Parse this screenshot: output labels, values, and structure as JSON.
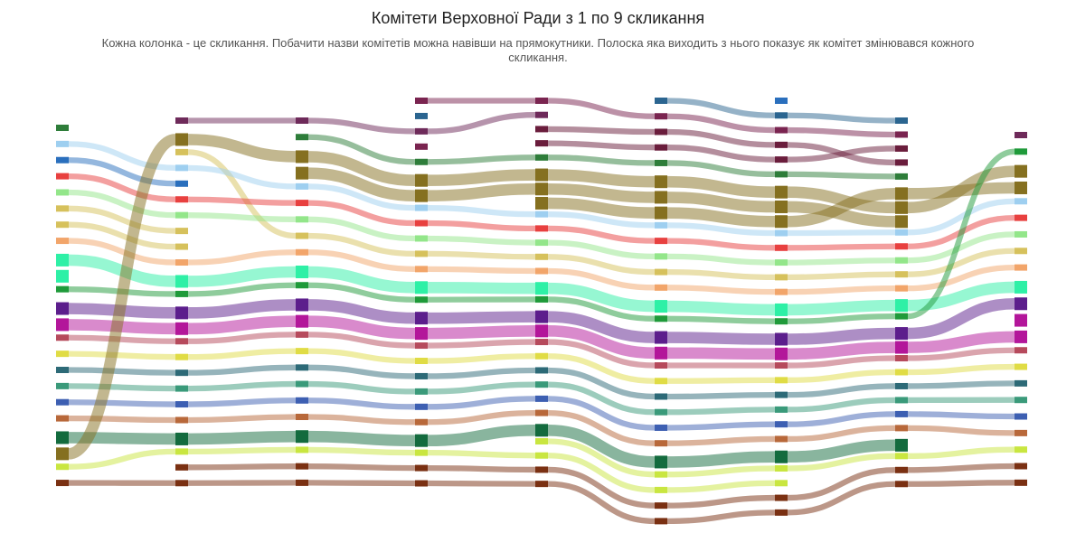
{
  "title": "Комітети Верховної Ради з 1 по 9 скликання",
  "subtitle": "Кожна колонка - це скликання. Побачити назви комітетів можна навівши на прямокутники. Полоска яка виходить з нього показує як комітет змінювався кожного скликання.",
  "chart_data": {
    "type": "sankey",
    "columns": 9,
    "palette": {
      "c_green_dark": "#2e7d3a",
      "c_lightblue": "#9ecff0",
      "c_blue": "#2a6fbd",
      "c_red": "#e8403f",
      "c_lightgreen": "#93e68a",
      "c_khaki": "#d6c15c",
      "c_peach": "#f2a56a",
      "c_mint": "#2ef0a6",
      "c_green": "#1f9a3a",
      "c_purple": "#5c1e8c",
      "c_magenta": "#b3169a",
      "c_rose": "#b64a5c",
      "c_yellow": "#e0dc45",
      "c_slate": "#2d6a77",
      "c_teal": "#3a9a7a",
      "c_navy": "#3d5fb2",
      "c_brown": "#b8683a",
      "c_forest": "#136b3e",
      "c_olive": "#857020",
      "c_lime": "#c9e640",
      "c_rust": "#7a3012",
      "c_plum": "#6e2a5a",
      "c_steel": "#2b6590",
      "c_maroon": "#6a1d3c",
      "c_wine": "#7a2450"
    },
    "nodes": [
      [
        "c_green_dark",
        "c_lightblue",
        "c_blue",
        "c_red",
        "c_lightgreen",
        "c_khaki",
        "c_khaki",
        "c_peach",
        "c_mint",
        "c_mint",
        "c_green",
        "c_purple",
        "c_magenta",
        "c_rose",
        "c_yellow",
        "c_slate",
        "c_teal",
        "c_navy",
        "c_brown",
        "c_forest",
        "c_olive",
        "c_lime",
        "c_rust"
      ],
      [
        "c_plum",
        "c_olive",
        "c_khaki",
        "c_lightblue",
        "c_blue",
        "c_red",
        "c_lightgreen",
        "c_khaki",
        "c_khaki",
        "c_peach",
        "c_mint",
        "c_green",
        "c_purple",
        "c_magenta",
        "c_rose",
        "c_yellow",
        "c_slate",
        "c_teal",
        "c_navy",
        "c_brown",
        "c_forest",
        "c_lime",
        "c_rust",
        "c_rust"
      ],
      [
        "c_plum",
        "c_green_dark",
        "c_olive",
        "c_olive",
        "c_lightblue",
        "c_red",
        "c_lightgreen",
        "c_khaki",
        "c_peach",
        "c_mint",
        "c_green",
        "c_purple",
        "c_magenta",
        "c_rose",
        "c_yellow",
        "c_slate",
        "c_teal",
        "c_navy",
        "c_brown",
        "c_forest",
        "c_lime",
        "c_rust",
        "c_rust"
      ],
      [
        "c_wine",
        "c_steel",
        "c_plum",
        "c_wine",
        "c_green_dark",
        "c_olive",
        "c_olive",
        "c_lightblue",
        "c_red",
        "c_lightgreen",
        "c_khaki",
        "c_peach",
        "c_mint",
        "c_green",
        "c_purple",
        "c_magenta",
        "c_rose",
        "c_yellow",
        "c_slate",
        "c_teal",
        "c_navy",
        "c_brown",
        "c_forest",
        "c_lime",
        "c_rust",
        "c_rust"
      ],
      [
        "c_wine",
        "c_plum",
        "c_maroon",
        "c_maroon",
        "c_green_dark",
        "c_olive",
        "c_olive",
        "c_olive",
        "c_lightblue",
        "c_red",
        "c_lightgreen",
        "c_khaki",
        "c_peach",
        "c_mint",
        "c_green",
        "c_purple",
        "c_magenta",
        "c_rose",
        "c_yellow",
        "c_slate",
        "c_teal",
        "c_navy",
        "c_brown",
        "c_forest",
        "c_lime",
        "c_lime",
        "c_rust",
        "c_rust"
      ],
      [
        "c_steel",
        "c_wine",
        "c_maroon",
        "c_maroon",
        "c_green_dark",
        "c_olive",
        "c_olive",
        "c_olive",
        "c_lightblue",
        "c_red",
        "c_lightgreen",
        "c_khaki",
        "c_peach",
        "c_mint",
        "c_green",
        "c_purple",
        "c_magenta",
        "c_rose",
        "c_yellow",
        "c_slate",
        "c_teal",
        "c_navy",
        "c_brown",
        "c_forest",
        "c_lime",
        "c_lime",
        "c_rust",
        "c_rust"
      ],
      [
        "c_blue",
        "c_steel",
        "c_wine",
        "c_maroon",
        "c_maroon",
        "c_green_dark",
        "c_olive",
        "c_olive",
        "c_olive",
        "c_lightblue",
        "c_red",
        "c_lightgreen",
        "c_khaki",
        "c_peach",
        "c_mint",
        "c_green",
        "c_purple",
        "c_magenta",
        "c_rose",
        "c_yellow",
        "c_slate",
        "c_teal",
        "c_navy",
        "c_brown",
        "c_forest",
        "c_lime",
        "c_lime",
        "c_rust",
        "c_rust"
      ],
      [
        "c_steel",
        "c_wine",
        "c_maroon",
        "c_maroon",
        "c_green_dark",
        "c_olive",
        "c_olive",
        "c_olive",
        "c_lightblue",
        "c_red",
        "c_lightgreen",
        "c_khaki",
        "c_peach",
        "c_mint",
        "c_green",
        "c_purple",
        "c_magenta",
        "c_rose",
        "c_yellow",
        "c_slate",
        "c_teal",
        "c_navy",
        "c_brown",
        "c_forest",
        "c_lime",
        "c_rust",
        "c_rust"
      ],
      [
        "c_plum",
        "c_green",
        "c_olive",
        "c_olive",
        "c_lightblue",
        "c_red",
        "c_lightgreen",
        "c_khaki",
        "c_peach",
        "c_mint",
        "c_purple",
        "c_magenta",
        "c_magenta",
        "c_rose",
        "c_yellow",
        "c_slate",
        "c_teal",
        "c_navy",
        "c_brown",
        "c_lime",
        "c_rust",
        "c_rust"
      ]
    ]
  }
}
